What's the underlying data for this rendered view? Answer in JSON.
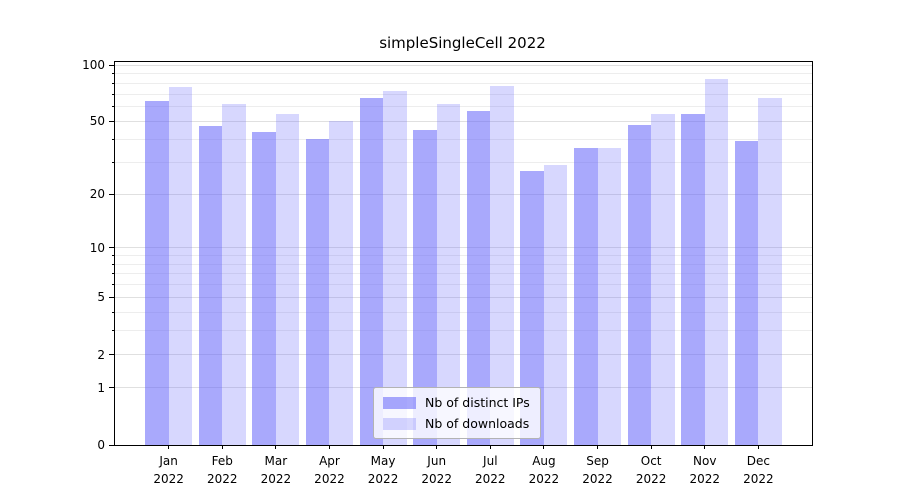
{
  "chart_data": {
    "type": "bar",
    "title": "simpleSingleCell 2022",
    "year": "2022",
    "categories": [
      "Jan",
      "Feb",
      "Mar",
      "Apr",
      "May",
      "Jun",
      "Jul",
      "Aug",
      "Sep",
      "Oct",
      "Nov",
      "Dec"
    ],
    "series": [
      {
        "name": "Nb of distinct IPs",
        "color": "rgba(99,99,250,0.55)",
        "values": [
          64,
          47,
          44,
          40,
          67,
          45,
          57,
          27,
          36,
          48,
          55,
          39
        ]
      },
      {
        "name": "Nb of downloads",
        "color": "rgba(99,99,250,0.26)",
        "values": [
          76,
          62,
          55,
          50,
          73,
          62,
          77,
          29,
          36,
          55,
          84,
          67
        ]
      }
    ],
    "y_axis": {
      "scale": "log1p",
      "min": 0,
      "max": 100,
      "tick_labels": [
        100,
        50,
        20,
        10,
        5,
        2,
        1,
        0
      ],
      "major_gridlines": [
        1,
        2,
        5,
        10,
        20,
        50,
        100
      ],
      "minor_gridlines": [
        3,
        4,
        6,
        7,
        8,
        9,
        30,
        40,
        60,
        70,
        80,
        90
      ]
    },
    "legend": {
      "position": "bottom-center"
    },
    "grid": {
      "enabled": true,
      "color_major": "#e0e0e0",
      "color_minor": "#ededed"
    }
  }
}
